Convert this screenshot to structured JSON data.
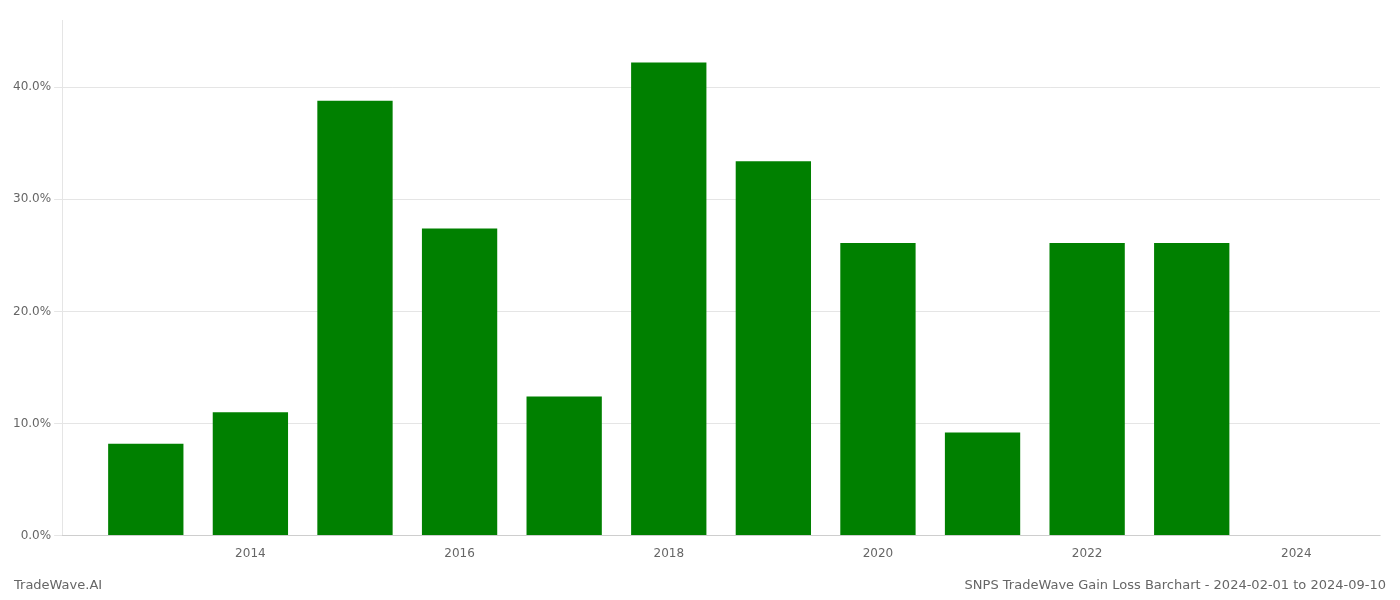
{
  "chart_data": {
    "type": "bar",
    "title": "SNPS TradeWave Gain Loss Barchart - 2024-02-01 to 2024-09-10",
    "annotations": [
      "TradeWave.AI"
    ],
    "x": [
      2013,
      2014,
      2015,
      2016,
      2017,
      2018,
      2019,
      2020,
      2021,
      2022,
      2023
    ],
    "values": [
      0.082,
      0.11,
      0.388,
      0.274,
      0.124,
      0.422,
      0.334,
      0.261,
      0.092,
      0.261,
      0.261
    ],
    "color": "#008000",
    "xlim": [
      2012.2,
      2024.8
    ],
    "xticks": [
      2014,
      2016,
      2018,
      2020,
      2022,
      2024
    ],
    "ylim": [
      0.0,
      0.46
    ],
    "yticks": [
      {
        "value": 0.0,
        "label": "0.0%"
      },
      {
        "value": 0.1,
        "label": "10.0%"
      },
      {
        "value": 0.2,
        "label": "20.0%"
      },
      {
        "value": 0.3,
        "label": "30.0%"
      },
      {
        "value": 0.4,
        "label": "40.0%"
      }
    ],
    "grid": "y"
  }
}
